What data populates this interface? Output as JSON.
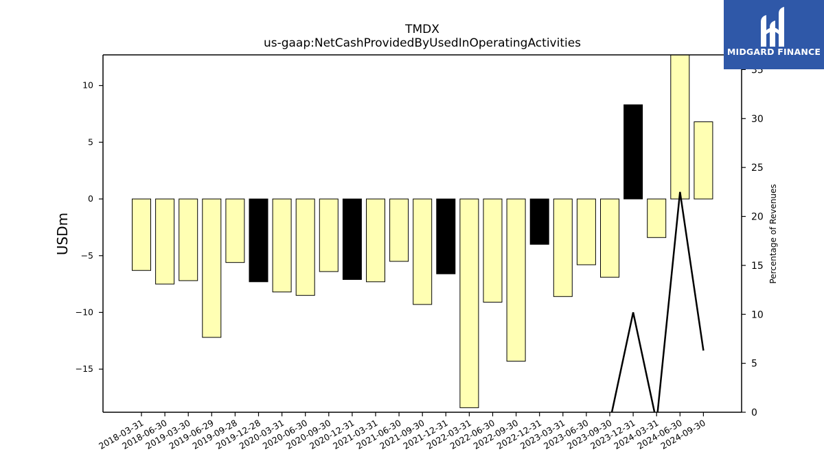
{
  "chart_data": {
    "type": "bar",
    "title": "TMDX",
    "subtitle": "us-gaap:NetCashProvidedByUsedInOperatingActivities",
    "ylabel": "USDm",
    "y2label": "Percentage of Revenues",
    "ylim": [
      -18.8,
      12.7
    ],
    "y2lim": [
      0,
      36.5
    ],
    "yticks": [
      -15,
      -10,
      -5,
      0,
      5,
      10
    ],
    "y2ticks": [
      0,
      5,
      10,
      15,
      20,
      25,
      30,
      35
    ],
    "categories": [
      "2018-03-31",
      "2018-06-30",
      "2019-03-30",
      "2019-06-29",
      "2019-09-28",
      "2019-12-28",
      "2020-03-31",
      "2020-06-30",
      "2020-09-30",
      "2020-12-31",
      "2021-03-31",
      "2021-06-30",
      "2021-09-30",
      "2021-12-31",
      "2022-03-31",
      "2022-06-30",
      "2022-09-30",
      "2022-12-31",
      "2023-03-31",
      "2023-06-30",
      "2023-09-30",
      "2023-12-31",
      "2024-03-31",
      "2024-06-30",
      "2024-09-30"
    ],
    "values": [
      -6.3,
      -7.5,
      -7.2,
      -12.2,
      -5.6,
      -7.3,
      -8.2,
      -8.5,
      -6.4,
      -7.1,
      -7.3,
      -5.5,
      -9.3,
      -6.6,
      -18.4,
      -9.1,
      -14.3,
      -4.0,
      -8.6,
      -5.8,
      -6.9,
      8.3,
      -3.4,
      12.7,
      6.8
    ],
    "highlight": [
      false,
      false,
      false,
      false,
      false,
      true,
      false,
      false,
      false,
      true,
      false,
      false,
      false,
      true,
      false,
      false,
      false,
      true,
      false,
      false,
      false,
      true,
      false,
      false,
      false
    ],
    "colors": {
      "bar": "#ffffb3",
      "highlight": "#000000",
      "line": "#000000",
      "logo_bg": "#2f58a8"
    },
    "line_series": {
      "name": "",
      "x_categories": [
        "2023-09-30",
        "2023-12-31",
        "2024-03-31",
        "2024-06-30",
        "2024-09-30"
      ],
      "values": [
        -1,
        10.2,
        -1,
        22.5,
        6.3
      ]
    }
  },
  "logo": {
    "text": "MIDGARD FINANCE"
  }
}
